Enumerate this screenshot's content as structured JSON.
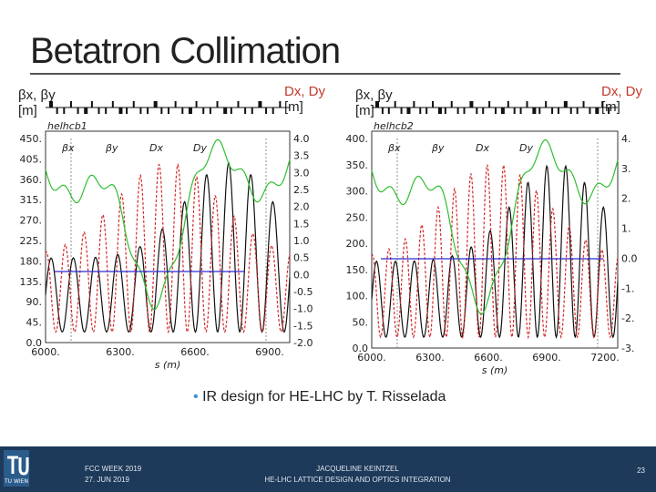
{
  "slide": {
    "title": "Betatron Collimation",
    "bullet": "IR design for HE-LHC by T. Risselada",
    "page_number": "23"
  },
  "footer": {
    "event": "FCC WEEK 2019",
    "date": "27. JUN 2019",
    "author": "JACQUELINE KEINTZEL",
    "talk": "HE-LHC LATTICE DESIGN AND OPTICS INTEGRATION",
    "logo_text": "TU WIEN"
  },
  "plots": [
    {
      "beam_label": "helhcb1",
      "left_axis_label_line1": "βx, βy",
      "left_axis_label_line2": "[m]",
      "right_axis_label_line1": "Dx, Dy",
      "right_axis_label_line2": "[m]",
      "xlabel": "s (m)",
      "legend": [
        "βx",
        "βy",
        "Dx",
        "Dy"
      ],
      "left_ticks": [
        "450.",
        "405.",
        "360.",
        "315.",
        "270.",
        "225.",
        "180.",
        "135.",
        "90.",
        "45.",
        "0.0"
      ],
      "right_ticks": [
        "4.0",
        "3.5",
        "3.0",
        "2.5",
        "2.0",
        "1.5",
        "1.0",
        "0.5",
        "0.0",
        "-0.5",
        "-1.0",
        "-1.5",
        "-2.0"
      ],
      "x_ticks": [
        "6000.",
        "6300.",
        "6600.",
        "6900."
      ]
    },
    {
      "beam_label": "helhcb2",
      "left_axis_label_line1": "βx, βy",
      "left_axis_label_line2": "[m]",
      "right_axis_label_line1": "Dx, Dy",
      "right_axis_label_line2": "[m]",
      "xlabel": "s (m)",
      "legend": [
        "βx",
        "βy",
        "Dx",
        "Dy"
      ],
      "left_ticks": [
        "400.",
        "350.",
        "300.",
        "250.",
        "200.",
        "150.",
        "100.",
        "50.",
        "0.0"
      ],
      "right_ticks": [
        "4.",
        "3.",
        "2.",
        "1.",
        "0.0",
        "-1.",
        "-2.",
        "-3."
      ],
      "x_ticks": [
        "6000.",
        "6300.",
        "6600.",
        "6900.",
        "7200."
      ]
    }
  ],
  "colors": {
    "betax": "#111111",
    "betay": "#d42a2a",
    "dx": "#2fbf2f",
    "dy": "#2a2ad4",
    "footer": "#1e3a5a"
  }
}
